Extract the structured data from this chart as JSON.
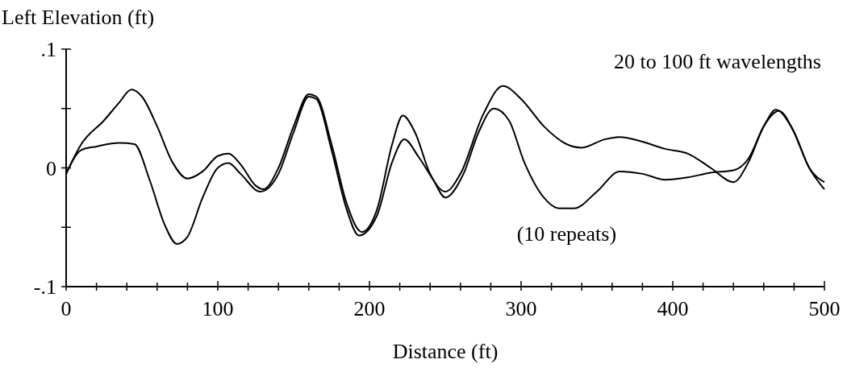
{
  "chart_data": {
    "type": "line",
    "ylabel": "Left Elevation (ft)",
    "xlabel": "Distance (ft)",
    "annotations": [
      "20 to 100 ft wavelengths",
      {
        "text": "(10 repeats)",
        "x": 330,
        "y": -0.034
      }
    ],
    "xlim": [
      0,
      500
    ],
    "ylim": [
      -0.1,
      0.1
    ],
    "xticks": [
      0,
      {
        "value": 20,
        "label": null
      },
      {
        "value": 40,
        "label": null
      },
      {
        "value": 60,
        "label": null
      },
      {
        "value": 80,
        "label": null
      },
      100,
      {
        "value": 120,
        "label": null
      },
      {
        "value": 140,
        "label": null
      },
      {
        "value": 160,
        "label": null
      },
      {
        "value": 180,
        "label": null
      },
      200,
      {
        "value": 220,
        "label": null
      },
      {
        "value": 240,
        "label": null
      },
      {
        "value": 260,
        "label": null
      },
      {
        "value": 280,
        "label": null
      },
      300,
      {
        "value": 320,
        "label": null
      },
      {
        "value": 340,
        "label": null
      },
      {
        "value": 360,
        "label": null
      },
      {
        "value": 380,
        "label": null
      },
      400,
      {
        "value": 420,
        "label": null
      },
      {
        "value": 440,
        "label": null
      },
      {
        "value": 460,
        "label": null
      },
      {
        "value": 480,
        "label": null
      },
      500
    ],
    "yticks": [
      {
        "value": -0.1,
        "label": "-.1"
      },
      {
        "value": -0.05,
        "label": null
      },
      {
        "value": 0,
        "label": "0"
      },
      {
        "value": 0.05,
        "label": null
      },
      {
        "value": 0.1,
        "label": ".1"
      }
    ],
    "grid": false,
    "marker": "none",
    "line_style": "solid",
    "series": [
      {
        "color": "#000000",
        "x": [
          0,
          10,
          25,
          35,
          43,
          50,
          60,
          70,
          80,
          90,
          100,
          107,
          115,
          125,
          130,
          140,
          150,
          160,
          165,
          175,
          185,
          195,
          205,
          215,
          222,
          230,
          240,
          250,
          260,
          275,
          288,
          300,
          315,
          330,
          340,
          355,
          365,
          380,
          395,
          410,
          425,
          440,
          450,
          460,
          470,
          480,
          490,
          500
        ],
        "values": [
          -0.005,
          0.02,
          0.04,
          0.055,
          0.066,
          0.06,
          0.035,
          0.005,
          -0.009,
          -0.003,
          0.01,
          0.012,
          0.003,
          -0.015,
          -0.018,
          0,
          0.035,
          0.062,
          0.06,
          0.02,
          -0.03,
          -0.054,
          -0.035,
          0.02,
          0.044,
          0.03,
          -0.005,
          -0.02,
          -0.005,
          0.045,
          0.069,
          0.058,
          0.035,
          0.02,
          0.017,
          0.024,
          0.026,
          0.022,
          0.016,
          0.012,
          0,
          -0.012,
          0.005,
          0.035,
          0.048,
          0.03,
          0,
          -0.012
        ]
      },
      {
        "color": "#000000",
        "x": [
          0,
          10,
          20,
          35,
          45,
          55,
          65,
          73,
          80,
          90,
          100,
          107,
          115,
          128,
          140,
          150,
          160,
          165,
          175,
          185,
          193,
          205,
          215,
          223,
          232,
          242,
          250,
          262,
          272,
          282,
          292,
          302,
          315,
          325,
          335,
          350,
          365,
          380,
          395,
          410,
          425,
          440,
          450,
          460,
          468,
          478,
          490,
          500
        ],
        "values": [
          -0.005,
          0.015,
          0.018,
          0.021,
          0.02,
          -0.01,
          -0.048,
          -0.064,
          -0.058,
          -0.025,
          0,
          0.004,
          -0.005,
          -0.02,
          -0.005,
          0.03,
          0.06,
          0.058,
          0.015,
          -0.035,
          -0.057,
          -0.04,
          0.005,
          0.024,
          0.01,
          -0.01,
          -0.025,
          -0.005,
          0.03,
          0.05,
          0.04,
          0.005,
          -0.025,
          -0.034,
          -0.034,
          -0.02,
          -0.003,
          -0.005,
          -0.01,
          -0.008,
          -0.004,
          -0.002,
          0.008,
          0.035,
          0.049,
          0.035,
          0,
          -0.018
        ]
      }
    ]
  }
}
